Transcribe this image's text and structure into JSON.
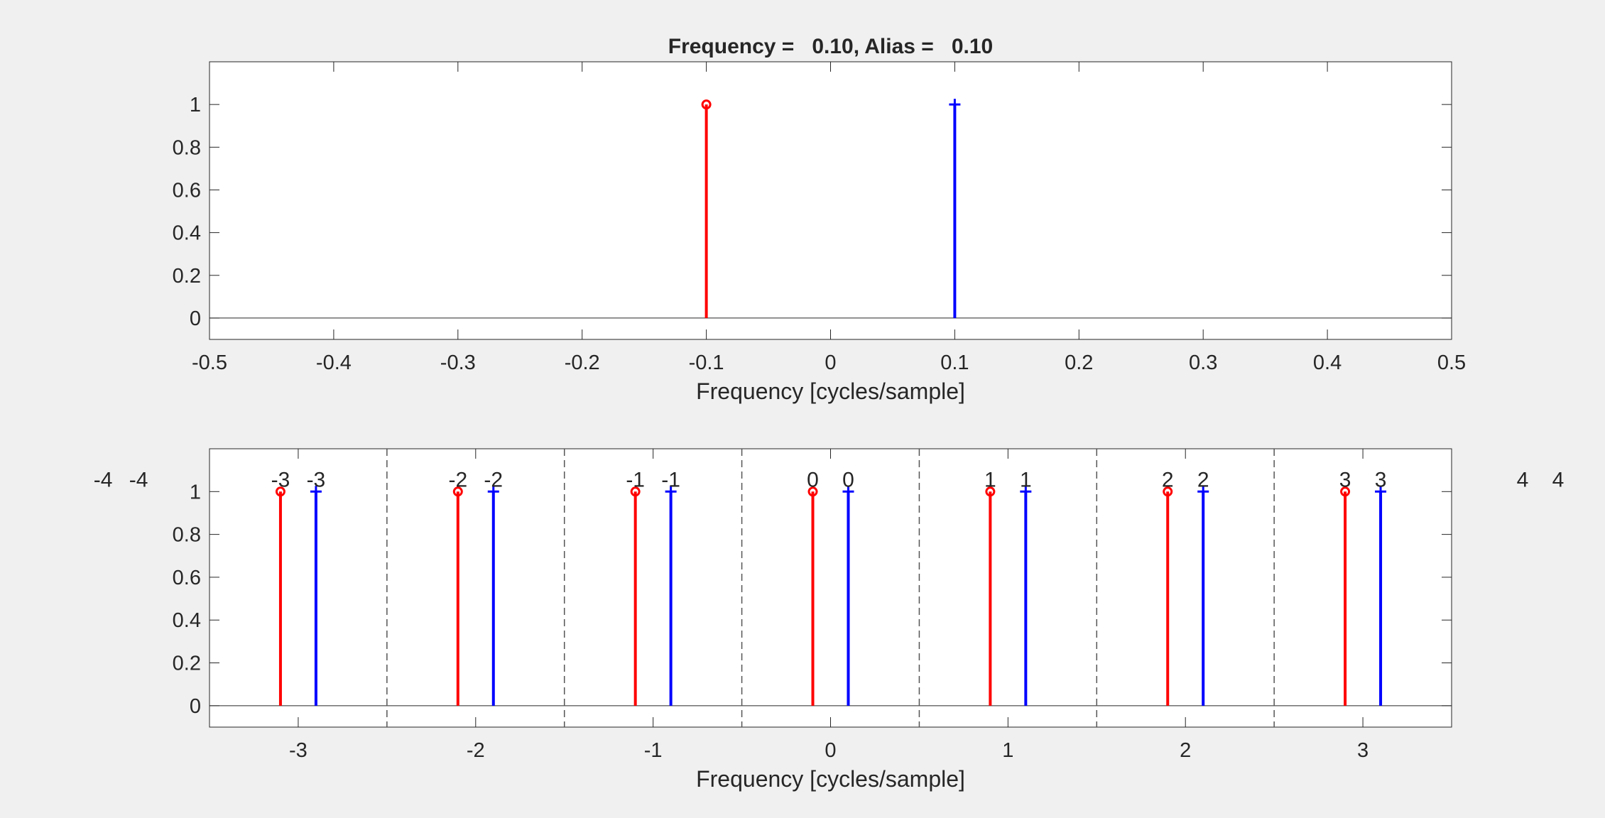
{
  "colors": {
    "background": "#f0f0f0",
    "axes_face": "#ffffff",
    "axes_edge": "#262626",
    "red_series": "#ff0000",
    "blue_series": "#0000ff",
    "divider": "#555555"
  },
  "chart_data": [
    {
      "type": "stem",
      "title": "Frequency =   0.10, Alias =   0.10",
      "xlabel": "Frequency [cycles/sample]",
      "ylabel": "",
      "xlim": [
        -0.5,
        0.5
      ],
      "ylim": [
        -0.1,
        1.2
      ],
      "xticks": [
        -0.5,
        -0.4,
        -0.3,
        -0.2,
        -0.1,
        0,
        0.1,
        0.2,
        0.3,
        0.4,
        0.5
      ],
      "xtick_labels": [
        "-0.5",
        "-0.4",
        "-0.3",
        "-0.2",
        "-0.1",
        "0",
        "0.1",
        "0.2",
        "0.3",
        "0.4",
        "0.5"
      ],
      "yticks": [
        0,
        0.2,
        0.4,
        0.6,
        0.8,
        1
      ],
      "ytick_labels": [
        "0",
        "0.2",
        "0.4",
        "0.6",
        "0.8",
        "1"
      ],
      "grid": false,
      "series": [
        {
          "marker": "circle",
          "color": "#ff0000",
          "x": [
            -0.1
          ],
          "y": [
            1
          ]
        },
        {
          "marker": "plus",
          "color": "#0000ff",
          "x": [
            0.1
          ],
          "y": [
            1
          ]
        }
      ]
    },
    {
      "type": "stem",
      "title": "",
      "xlabel": "Frequency [cycles/sample]",
      "ylabel": "",
      "xlim": [
        -3.5,
        3.5
      ],
      "ylim": [
        -0.1,
        1.2
      ],
      "xticks": [
        -3,
        -2,
        -1,
        0,
        1,
        2,
        3
      ],
      "xtick_labels": [
        "-3",
        "-2",
        "-1",
        "0",
        "1",
        "2",
        "3"
      ],
      "yticks": [
        0,
        0.2,
        0.4,
        0.6,
        0.8,
        1
      ],
      "ytick_labels": [
        "0",
        "0.2",
        "0.4",
        "0.6",
        "0.8",
        "1"
      ],
      "grid": false,
      "dividers": [
        -2.5,
        -1.5,
        -0.5,
        0.5,
        1.5,
        2.5
      ],
      "series": [
        {
          "marker": "circle",
          "color": "#ff0000",
          "x": [
            -3.1,
            -2.1,
            -1.1,
            -0.1,
            0.9,
            1.9,
            2.9
          ],
          "y": [
            1,
            1,
            1,
            1,
            1,
            1,
            1
          ]
        },
        {
          "marker": "plus",
          "color": "#0000ff",
          "x": [
            -2.9,
            -1.9,
            -0.9,
            0.1,
            1.1,
            2.1,
            3.1
          ],
          "y": [
            1,
            1,
            1,
            1,
            1,
            1,
            1
          ]
        }
      ],
      "annotations": [
        {
          "text": "-4",
          "x": -4.1
        },
        {
          "text": "-4",
          "x": -3.9
        },
        {
          "text": "-3",
          "x": -3.1
        },
        {
          "text": "-3",
          "x": -2.9
        },
        {
          "text": "-2",
          "x": -2.1
        },
        {
          "text": "-2",
          "x": -1.9
        },
        {
          "text": "-1",
          "x": -1.1
        },
        {
          "text": "-1",
          "x": -0.9
        },
        {
          "text": "0",
          "x": -0.1
        },
        {
          "text": "0",
          "x": 0.1
        },
        {
          "text": "1",
          "x": 0.9
        },
        {
          "text": "1",
          "x": 1.1
        },
        {
          "text": "2",
          "x": 1.9
        },
        {
          "text": "2",
          "x": 2.1
        },
        {
          "text": "3",
          "x": 2.9
        },
        {
          "text": "3",
          "x": 3.1
        },
        {
          "text": "4",
          "x": 3.9
        },
        {
          "text": "4",
          "x": 4.1
        }
      ]
    }
  ]
}
